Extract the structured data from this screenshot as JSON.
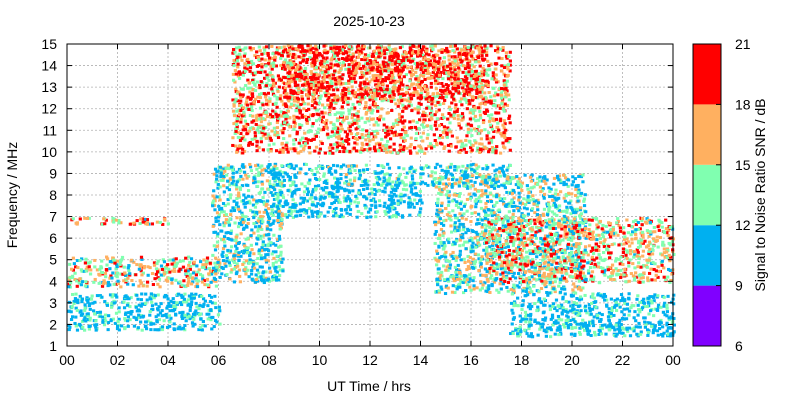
{
  "chart_data": {
    "type": "heatmap",
    "title": "2025-10-23",
    "xlabel": "UT Time / hrs",
    "ylabel": "Frequency / MHz",
    "xlim": [
      0,
      24
    ],
    "ylim": [
      1,
      15
    ],
    "x_ticks": [
      "00",
      "02",
      "04",
      "06",
      "08",
      "10",
      "12",
      "14",
      "16",
      "18",
      "20",
      "22",
      "00"
    ],
    "y_ticks": [
      "1",
      "2",
      "3",
      "4",
      "5",
      "6",
      "7",
      "8",
      "9",
      "10",
      "11",
      "12",
      "13",
      "14",
      "15"
    ],
    "grid": true,
    "colorbar": {
      "label": "Signal to Noise Ratio SNR / dB",
      "ticks": [
        "6",
        "9",
        "12",
        "15",
        "18",
        "21"
      ],
      "range": [
        6,
        21
      ],
      "bands": [
        {
          "min": 6,
          "max": 9,
          "color": "#8000ff"
        },
        {
          "min": 9,
          "max": 12,
          "color": "#00b0f0"
        },
        {
          "min": 12,
          "max": 15,
          "color": "#80ffb0"
        },
        {
          "min": 15,
          "max": 18,
          "color": "#ffb060"
        },
        {
          "min": 18,
          "max": 21,
          "color": "#ff0000"
        }
      ]
    },
    "regions": [
      {
        "x": [
          0.0,
          6.0
        ],
        "y": [
          3.8,
          5.2
        ],
        "dominant_snr": 15
      },
      {
        "x": [
          0.0,
          6.0
        ],
        "y": [
          1.8,
          3.5
        ],
        "dominant_snr": 10
      },
      {
        "x": [
          0.0,
          4.0
        ],
        "y": [
          6.7,
          7.0
        ],
        "dominant_snr": 16
      },
      {
        "x": [
          5.7,
          8.5
        ],
        "y": [
          4.0,
          9.5
        ],
        "dominant_snr": 12
      },
      {
        "x": [
          6.5,
          17.5
        ],
        "y": [
          10.0,
          15.0
        ],
        "dominant_snr": 17
      },
      {
        "x": [
          8.5,
          16.5
        ],
        "y": [
          12.5,
          15.0
        ],
        "dominant_snr": 19
      },
      {
        "x": [
          8.0,
          17.5
        ],
        "y": [
          8.5,
          9.5
        ],
        "dominant_snr": 11
      },
      {
        "x": [
          8.0,
          14.0
        ],
        "y": [
          7.0,
          8.5
        ],
        "dominant_snr": 10
      },
      {
        "x": [
          14.5,
          20.5
        ],
        "y": [
          3.5,
          9.0
        ],
        "dominant_snr": 13
      },
      {
        "x": [
          16.5,
          24.0
        ],
        "y": [
          4.0,
          7.0
        ],
        "dominant_snr": 16
      },
      {
        "x": [
          17.5,
          24.0
        ],
        "y": [
          1.5,
          3.5
        ],
        "dominant_snr": 10
      }
    ]
  }
}
